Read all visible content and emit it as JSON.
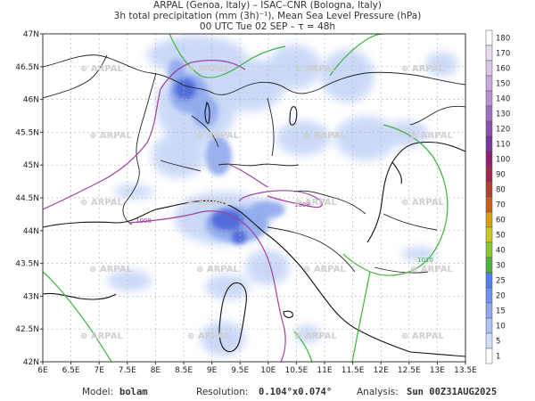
{
  "title": {
    "line1": "ARPAL (Genoa, Italy)  –  ISAC–CNR (Bologna, Italy)",
    "line2": "3h total precipitation (mm (3h)⁻¹), Mean Sea Level Pressure (hPa)",
    "line3": "00 UTC Tue 02 SEP  –  τ = 48h"
  },
  "map": {
    "lon_ticks": [
      "6E",
      "6.5E",
      "7E",
      "7.5E",
      "8E",
      "8.5E",
      "9E",
      "9.5E",
      "10E",
      "10.5E",
      "11E",
      "11.5E",
      "12E",
      "12.5E",
      "13E",
      "13.5E"
    ],
    "lat_ticks": [
      "47N",
      "46.5N",
      "46N",
      "45.5N",
      "45N",
      "44.5N",
      "44N",
      "43.5N",
      "43N",
      "42.5N",
      "42N"
    ],
    "lon_range": [
      6,
      13.5
    ],
    "lat_range": [
      42,
      47
    ],
    "watermark": "ARPAL",
    "isobar_labels": [
      "1008",
      "1008",
      "1010"
    ],
    "colors": {
      "isobar_1008": "#a040a0",
      "isobar_1010": "#3cb43c",
      "precip_light": "#c8d8f8",
      "precip_heavy": "#3050d0"
    }
  },
  "colorbar": {
    "levels": [
      "180",
      "170",
      "160",
      "150",
      "140",
      "130",
      "120",
      "110",
      "100",
      "90",
      "80",
      "70",
      "60",
      "50",
      "40",
      "30",
      "25",
      "20",
      "15",
      "10",
      "5",
      "1"
    ],
    "colors": [
      "#ffffff",
      "#eadcf0",
      "#dcc4e8",
      "#c8a8dc",
      "#b890d0",
      "#a070c0",
      "#8c50b0",
      "#7838a0",
      "#902070",
      "#a02850",
      "#b04030",
      "#c86018",
      "#d8a010",
      "#c8c820",
      "#88c830",
      "#50b040",
      "#5080e8",
      "#7090f0",
      "#90a8f0",
      "#b0c0f8",
      "#d0dcfc",
      "#ffffff"
    ]
  },
  "footer": {
    "model_label": "Model:",
    "model_value": "bolam",
    "resolution_label": "Resolution:",
    "resolution_value": "0.104°x0.074°",
    "analysis_label": "Analysis:",
    "analysis_value": "Sun 00Z31AUG2025"
  }
}
